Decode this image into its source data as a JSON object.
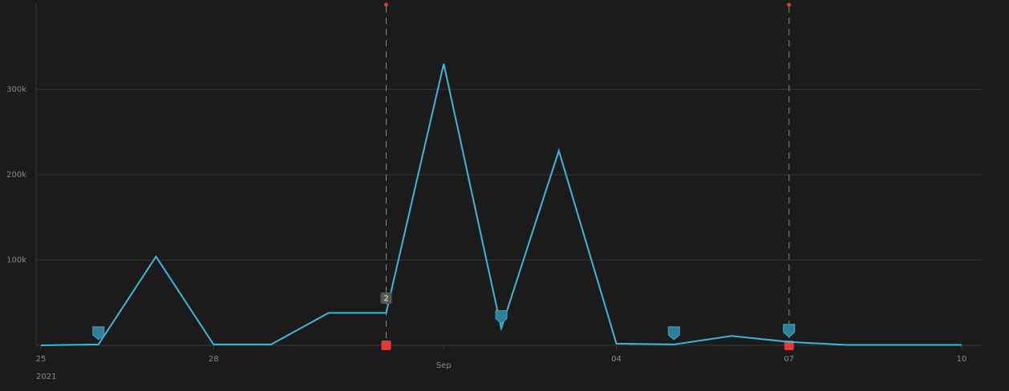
{
  "chart_data": {
    "type": "line",
    "x": [
      "2021-08-25",
      "2021-08-26",
      "2021-08-27",
      "2021-08-28",
      "2021-08-29",
      "2021-08-30",
      "2021-08-31",
      "2021-09-01",
      "2021-09-02",
      "2021-09-03",
      "2021-09-04",
      "2021-09-05",
      "2021-09-06",
      "2021-09-07",
      "2021-09-08",
      "2021-09-09",
      "2021-09-10"
    ],
    "series": [
      {
        "color": "#3fb6dc",
        "values": [
          0,
          1000,
          104000,
          1000,
          1000,
          38000,
          38000,
          330000,
          20000,
          228000,
          2000,
          1000,
          11000,
          4000,
          500,
          500,
          500
        ]
      }
    ],
    "xlim": [
      "2021-08-25",
      "2021-09-10"
    ],
    "xticks": [
      {
        "value": "2021-08-25",
        "label": "25"
      },
      {
        "value": "2021-08-28",
        "label": "28"
      },
      {
        "value": "2021-09-01",
        "label": "Sep"
      },
      {
        "value": "2021-09-04",
        "label": "04"
      },
      {
        "value": "2021-09-07",
        "label": "07"
      },
      {
        "value": "2021-09-10",
        "label": "10"
      }
    ],
    "year_label": "2021",
    "ylim": [
      0,
      400000
    ],
    "yticks": [
      {
        "value": 100000,
        "label": "100k"
      },
      {
        "value": 200000,
        "label": "200k"
      },
      {
        "value": 300000,
        "label": "300k"
      }
    ],
    "grid": true,
    "flags": {
      "color": "#2f7f99",
      "x": [
        "2021-08-26",
        "2021-09-02",
        "2021-09-05",
        "2021-09-07"
      ]
    },
    "alerts": {
      "color": "#e0393e",
      "x": [
        "2021-08-31",
        "2021-09-07"
      ]
    },
    "alert_badge": {
      "x": "2021-08-31",
      "count": 2
    }
  }
}
